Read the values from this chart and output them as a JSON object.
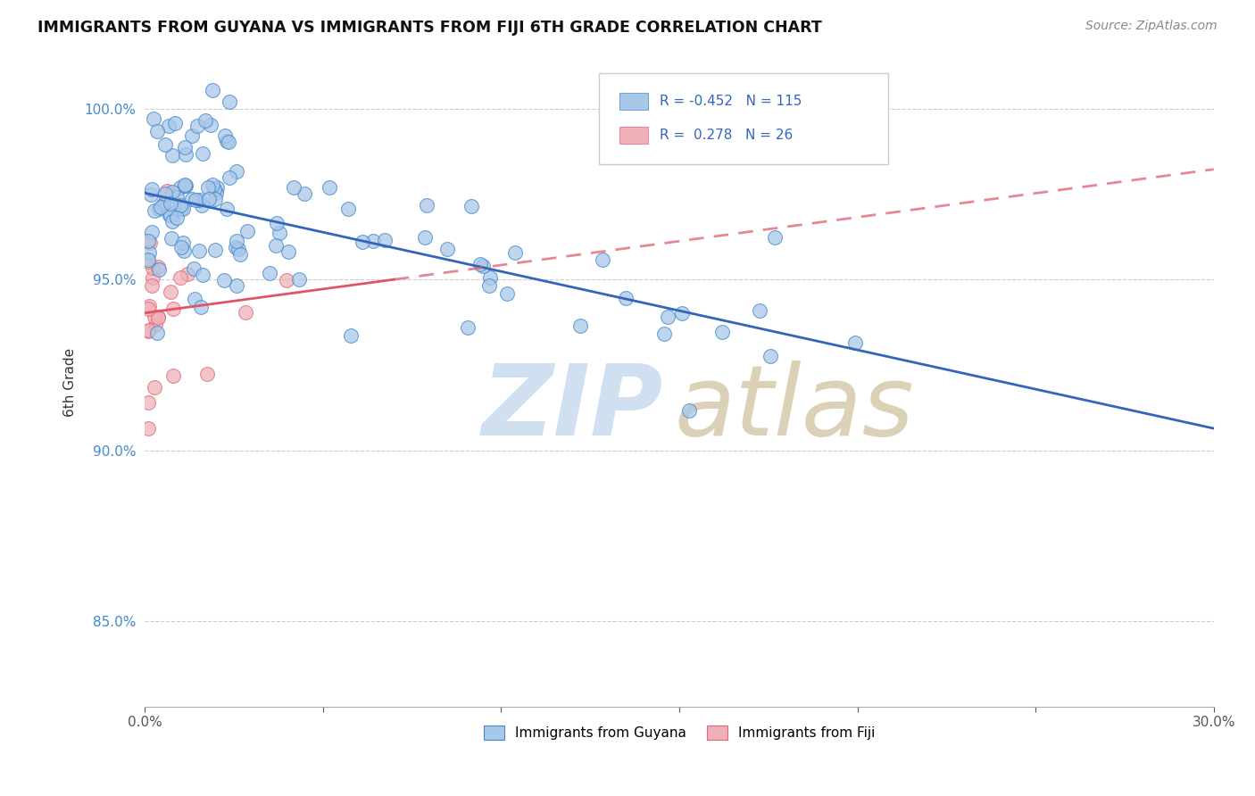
{
  "title": "IMMIGRANTS FROM GUYANA VS IMMIGRANTS FROM FIJI 6TH GRADE CORRELATION CHART",
  "source": "Source: ZipAtlas.com",
  "ylabel": "6th Grade",
  "xlim": [
    0.0,
    0.3
  ],
  "ylim": [
    0.825,
    1.015
  ],
  "xticks": [
    0.0,
    0.05,
    0.1,
    0.15,
    0.2,
    0.25,
    0.3
  ],
  "xtick_labels": [
    "0.0%",
    "",
    "",
    "",
    "",
    "",
    "30.0%"
  ],
  "yticks": [
    0.85,
    0.9,
    0.95,
    1.0
  ],
  "ytick_labels": [
    "85.0%",
    "90.0%",
    "95.0%",
    "100.0%"
  ],
  "R_guyana": -0.452,
  "N_guyana": 115,
  "R_fiji": 0.278,
  "N_fiji": 26,
  "blue_face_color": "#a8c8e8",
  "blue_edge_color": "#4488cc",
  "pink_face_color": "#f0b0b8",
  "pink_edge_color": "#e06878",
  "blue_line_color": "#3366bb",
  "pink_line_color": "#dd5566",
  "legend_label_color": "#3366bb",
  "ytick_color": "#4488cc",
  "watermark_zip_color": "#ccddf0",
  "watermark_atlas_color": "#d8ccb0"
}
